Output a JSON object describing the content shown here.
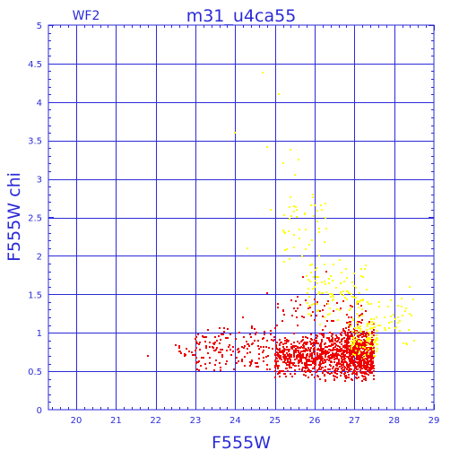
{
  "chart_data": {
    "type": "scatter",
    "title": "m31_u4ca55",
    "subtitle": "WF2",
    "xlabel": "F555W",
    "ylabel": "F555W chi",
    "xlim": [
      19.3,
      29.0
    ],
    "ylim": [
      0,
      5
    ],
    "xticks": [
      20,
      21,
      22,
      23,
      24,
      25,
      26,
      27,
      28,
      29
    ],
    "xtick_labels": [
      "20",
      "21",
      "22",
      "23",
      "24",
      "25",
      "26",
      "27",
      "28",
      "29"
    ],
    "yticks": [
      0,
      0.5,
      1,
      1.5,
      2,
      2.5,
      3,
      3.5,
      4,
      4.5,
      5
    ],
    "ytick_labels": [
      "0",
      "0.5",
      "1",
      "1.5",
      "2",
      "2.5",
      "3",
      "3.5",
      "4",
      "4.5",
      "5"
    ],
    "grid": true,
    "colors": {
      "axis": "#2a2ad8",
      "grid": "#2a2ad8",
      "primary": "#ee0000",
      "secondary": "#ffff00"
    },
    "series": [
      {
        "color": "#ee0000",
        "clusters": [
          {
            "x": [
              25.0,
              26.0
            ],
            "y": [
              0.4,
              1.0
            ],
            "count": 340
          },
          {
            "x": [
              26.0,
              27.5
            ],
            "y": [
              0.35,
              1.05
            ],
            "count": 700
          },
          {
            "x": [
              26.7,
              27.5
            ],
            "y": [
              0.35,
              1.2
            ],
            "count": 260
          },
          {
            "x": [
              23.0,
              25.0
            ],
            "y": [
              0.45,
              1.15
            ],
            "count": 160
          },
          {
            "x": [
              22.5,
              23.0
            ],
            "y": [
              0.6,
              0.95
            ],
            "count": 12
          },
          {
            "x": [
              25.0,
              27.3
            ],
            "y": [
              1.05,
              1.5
            ],
            "count": 60
          }
        ],
        "points": [
          {
            "x": 21.8,
            "y": 0.7
          },
          {
            "x": 22.5,
            "y": 0.84
          },
          {
            "x": 22.6,
            "y": 0.8
          },
          {
            "x": 24.8,
            "y": 1.52
          },
          {
            "x": 25.7,
            "y": 1.72
          },
          {
            "x": 26.3,
            "y": 1.8
          },
          {
            "x": 24.2,
            "y": 1.2
          },
          {
            "x": 23.6,
            "y": 1.06
          }
        ]
      },
      {
        "color": "#ffff00",
        "clusters": [
          {
            "x": [
              25.8,
              27.3
            ],
            "y": [
              1.0,
              2.0
            ],
            "count": 110
          },
          {
            "x": [
              27.3,
              28.5
            ],
            "y": [
              0.75,
              1.6
            ],
            "count": 45
          },
          {
            "x": [
              25.2,
              26.3
            ],
            "y": [
              1.8,
              3.0
            ],
            "count": 45
          },
          {
            "x": [
              26.9,
              27.6
            ],
            "y": [
              0.6,
              1.2
            ],
            "count": 90
          }
        ],
        "points": [
          {
            "x": 24.7,
            "y": 4.38
          },
          {
            "x": 25.1,
            "y": 4.1
          },
          {
            "x": 24.0,
            "y": 3.6
          },
          {
            "x": 24.8,
            "y": 3.42
          },
          {
            "x": 25.4,
            "y": 3.38
          },
          {
            "x": 25.6,
            "y": 3.25
          },
          {
            "x": 25.2,
            "y": 3.2
          },
          {
            "x": 25.5,
            "y": 3.05
          },
          {
            "x": 24.9,
            "y": 2.6
          },
          {
            "x": 24.3,
            "y": 2.1
          },
          {
            "x": 28.4,
            "y": 1.6
          },
          {
            "x": 28.1,
            "y": 1.2
          },
          {
            "x": 28.5,
            "y": 0.9
          }
        ]
      }
    ]
  }
}
